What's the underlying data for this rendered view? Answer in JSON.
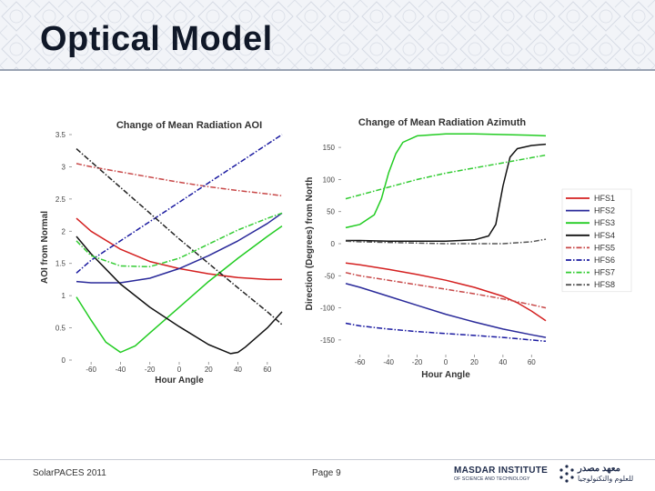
{
  "slide": {
    "title": "Optical Model",
    "footer_left": "SolarPACES 2011",
    "footer_center": "Page 9"
  },
  "logo": {
    "name_en": "MASDAR INSTITUTE",
    "tagline_en": "OF SCIENCE AND TECHNOLOGY",
    "name_ar": "معهد مصدر",
    "tagline_ar": "للعلوم والتكنولوجيا"
  },
  "chart_data": [
    {
      "type": "line",
      "title": "Change of Mean Radiation AOI",
      "xlabel": "Hour Angle",
      "ylabel": "AOI from Normal",
      "xlim": [
        -70,
        70
      ],
      "ylim": [
        0,
        3.5
      ],
      "xticks": [
        -60,
        -40,
        -20,
        0,
        20,
        40,
        60
      ],
      "yticks": [
        0,
        0.5,
        1,
        1.5,
        2,
        2.5,
        3,
        3.5
      ],
      "grid": false,
      "series": [
        {
          "name": "HFS1",
          "color": "#d42020",
          "dash": "solid",
          "x": [
            -70,
            -60,
            -40,
            -20,
            0,
            20,
            40,
            60,
            70
          ],
          "y": [
            2.2,
            2.0,
            1.72,
            1.53,
            1.42,
            1.34,
            1.28,
            1.25,
            1.25
          ]
        },
        {
          "name": "HFS2",
          "color": "#2a2a9a",
          "dash": "solid",
          "x": [
            -70,
            -60,
            -40,
            -20,
            0,
            20,
            40,
            60,
            70
          ],
          "y": [
            1.22,
            1.2,
            1.2,
            1.27,
            1.42,
            1.62,
            1.85,
            2.12,
            2.28
          ]
        },
        {
          "name": "HFS3",
          "color": "#22cc22",
          "dash": "solid",
          "x": [
            -70,
            -60,
            -50,
            -40,
            -30,
            -20,
            0,
            20,
            40,
            60,
            70
          ],
          "y": [
            0.98,
            0.62,
            0.28,
            0.12,
            0.22,
            0.42,
            0.82,
            1.22,
            1.58,
            1.92,
            2.08
          ]
        },
        {
          "name": "HFS4",
          "color": "#111111",
          "dash": "solid",
          "x": [
            -70,
            -60,
            -40,
            -20,
            0,
            20,
            35,
            40,
            45,
            60,
            70
          ],
          "y": [
            1.92,
            1.65,
            1.18,
            0.82,
            0.52,
            0.24,
            0.1,
            0.12,
            0.2,
            0.5,
            0.75
          ]
        },
        {
          "name": "HFS5",
          "color": "#c84848",
          "dash": "dashdot",
          "x": [
            -70,
            -60,
            -40,
            -20,
            0,
            20,
            40,
            60,
            70
          ],
          "y": [
            3.05,
            3.0,
            2.92,
            2.84,
            2.76,
            2.69,
            2.63,
            2.58,
            2.55
          ]
        },
        {
          "name": "HFS6",
          "color": "#1a1aa0",
          "dash": "dashdot",
          "x": [
            -70,
            -60,
            -40,
            -20,
            0,
            20,
            40,
            60,
            70
          ],
          "y": [
            1.35,
            1.55,
            1.85,
            2.15,
            2.45,
            2.75,
            3.05,
            3.35,
            3.5
          ]
        },
        {
          "name": "HFS7",
          "color": "#33cc33",
          "dash": "dashdot",
          "x": [
            -70,
            -60,
            -40,
            -20,
            0,
            20,
            40,
            60,
            70
          ],
          "y": [
            1.85,
            1.62,
            1.46,
            1.45,
            1.58,
            1.8,
            2.02,
            2.2,
            2.28
          ]
        },
        {
          "name": "HFS8",
          "color": "#222222",
          "dash": "dashdot",
          "x": [
            -70,
            -60,
            -40,
            -20,
            0,
            20,
            40,
            60,
            70
          ],
          "y": [
            3.28,
            3.08,
            2.68,
            2.28,
            1.88,
            1.5,
            1.12,
            0.75,
            0.55
          ]
        }
      ]
    },
    {
      "type": "line",
      "title": "Change of Mean Radiation Azimuth",
      "xlabel": "Hour Angle",
      "ylabel": "Direction (Degrees) from North",
      "xlim": [
        -70,
        70
      ],
      "ylim": [
        -170,
        170
      ],
      "xticks": [
        -60,
        -40,
        -20,
        0,
        20,
        40,
        60
      ],
      "yticks": [
        -150,
        -100,
        -50,
        0,
        50,
        100,
        150
      ],
      "grid": false,
      "legend": "right",
      "series": [
        {
          "name": "HFS1",
          "color": "#d42020",
          "dash": "solid",
          "x": [
            -70,
            -60,
            -40,
            -20,
            0,
            20,
            40,
            50,
            60,
            70
          ],
          "y": [
            -30,
            -33,
            -40,
            -48,
            -57,
            -68,
            -82,
            -92,
            -105,
            -120
          ]
        },
        {
          "name": "HFS2",
          "color": "#2a2a9a",
          "dash": "solid",
          "x": [
            -70,
            -60,
            -40,
            -20,
            0,
            20,
            40,
            60,
            70
          ],
          "y": [
            -62,
            -68,
            -82,
            -96,
            -110,
            -122,
            -133,
            -142,
            -146
          ]
        },
        {
          "name": "HFS3",
          "color": "#22cc22",
          "dash": "solid",
          "x": [
            -70,
            -60,
            -50,
            -45,
            -40,
            -35,
            -30,
            -20,
            0,
            20,
            40,
            60,
            70
          ],
          "y": [
            25,
            30,
            45,
            70,
            110,
            140,
            158,
            168,
            171,
            171,
            170,
            169,
            168
          ]
        },
        {
          "name": "HFS4",
          "color": "#111111",
          "dash": "solid",
          "x": [
            -70,
            -60,
            -40,
            -20,
            0,
            20,
            30,
            35,
            40,
            45,
            50,
            60,
            70
          ],
          "y": [
            5,
            5,
            4,
            4,
            4,
            6,
            12,
            30,
            90,
            135,
            148,
            153,
            155
          ]
        },
        {
          "name": "HFS5",
          "color": "#c84848",
          "dash": "dashdot",
          "x": [
            -70,
            -60,
            -40,
            -20,
            0,
            20,
            40,
            60,
            70
          ],
          "y": [
            -45,
            -50,
            -57,
            -64,
            -71,
            -78,
            -86,
            -95,
            -100
          ]
        },
        {
          "name": "HFS6",
          "color": "#1a1aa0",
          "dash": "dashdot",
          "x": [
            -70,
            -60,
            -40,
            -20,
            0,
            20,
            40,
            60,
            70
          ],
          "y": [
            -124,
            -128,
            -133,
            -137,
            -140,
            -143,
            -146,
            -150,
            -152
          ]
        },
        {
          "name": "HFS7",
          "color": "#33cc33",
          "dash": "dashdot",
          "x": [
            -70,
            -60,
            -40,
            -20,
            0,
            20,
            40,
            60,
            70
          ],
          "y": [
            70,
            76,
            88,
            100,
            110,
            118,
            126,
            134,
            138
          ]
        },
        {
          "name": "HFS8",
          "color": "#555555",
          "dash": "dashdot",
          "x": [
            -70,
            -60,
            -40,
            -20,
            0,
            20,
            40,
            60,
            70
          ],
          "y": [
            4,
            3,
            2,
            1,
            0,
            0,
            0,
            3,
            7
          ]
        }
      ]
    }
  ]
}
